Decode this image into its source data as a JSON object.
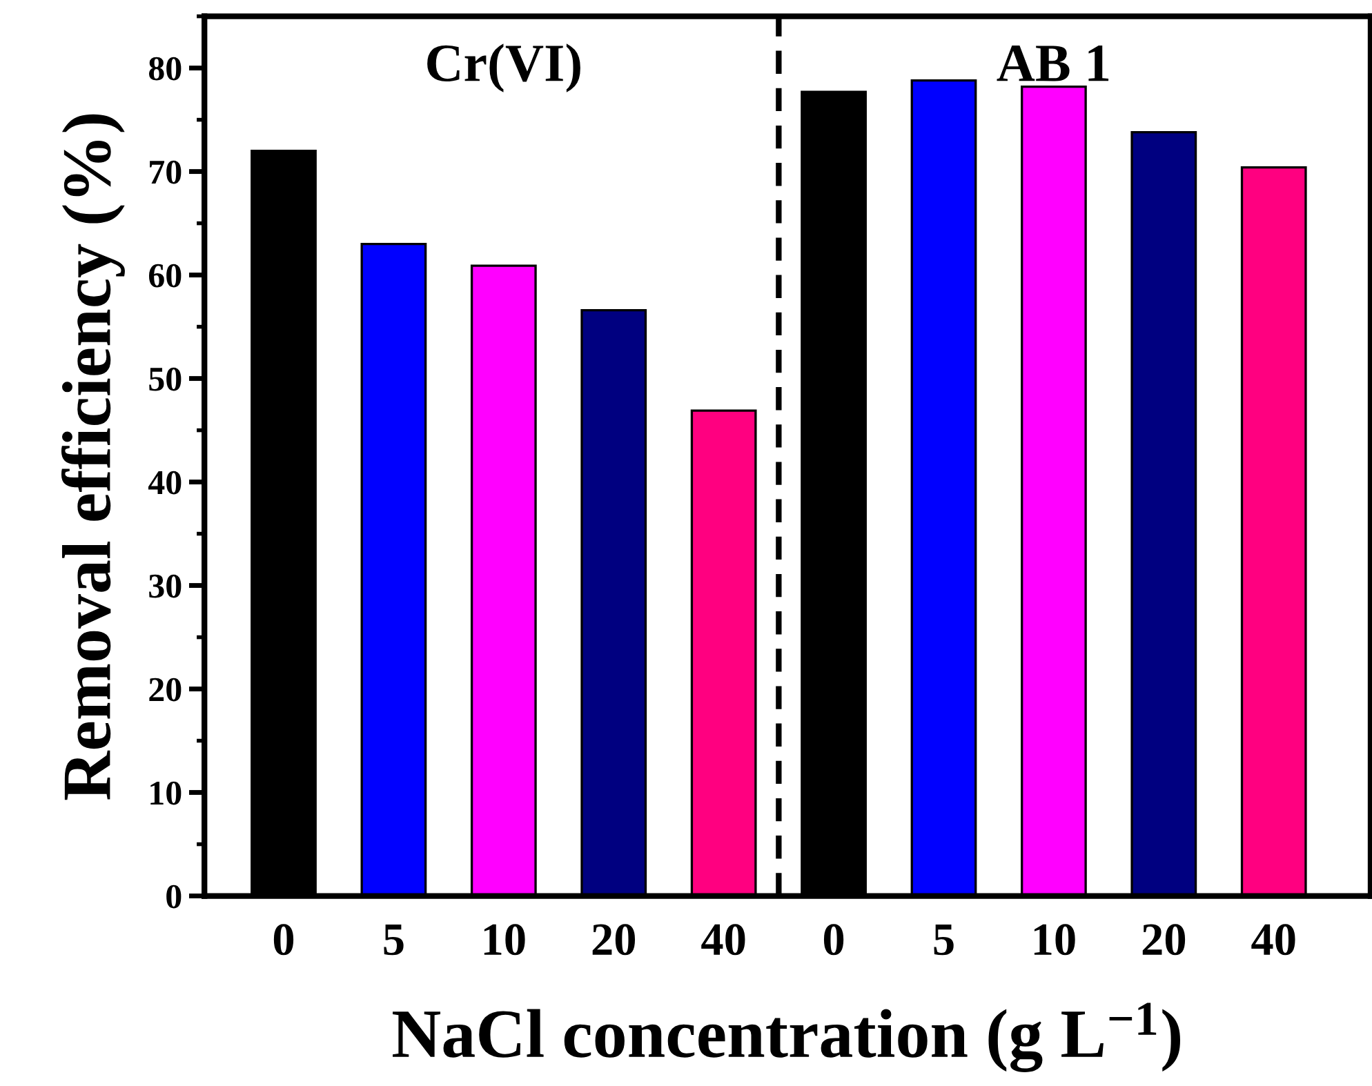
{
  "chart_data": {
    "type": "bar",
    "categories": [
      "0",
      "5",
      "10",
      "20",
      "40",
      "0",
      "5",
      "10",
      "20",
      "40"
    ],
    "values": [
      72.0,
      63.0,
      60.9,
      56.6,
      46.9,
      77.7,
      78.8,
      78.2,
      73.8,
      70.4
    ],
    "colors": [
      "#000000",
      "#0000ff",
      "#ff00ff",
      "#000080",
      "#ff0080",
      "#000000",
      "#0000ff",
      "#ff00ff",
      "#000080",
      "#ff0080"
    ],
    "xlabel": "NaCl concentration (g L$^{−1}$)",
    "ylabel": "Removal efficiency (%)",
    "ylim": [
      0,
      85
    ],
    "yticks": [
      0,
      10,
      20,
      30,
      40,
      50,
      60,
      70,
      80
    ],
    "annotations": [
      "Cr(VI)",
      "AB 1"
    ],
    "grid": false
  }
}
